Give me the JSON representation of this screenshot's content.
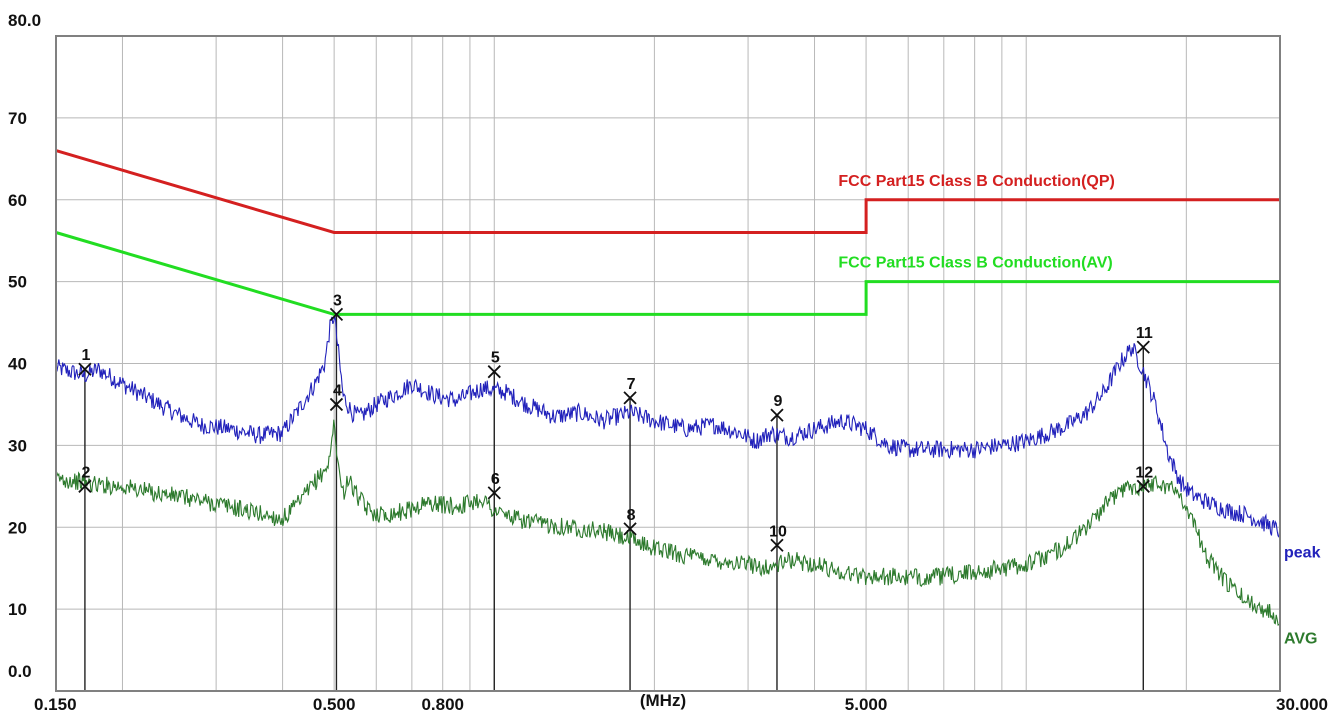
{
  "chart_data": {
    "type": "line",
    "x_scale": "log",
    "xlim": [
      0.15,
      30
    ],
    "ylim": [
      0,
      80
    ],
    "grid": true,
    "x_unit_label": "(MHz)",
    "y_ticks": [
      "0.0",
      "10",
      "20",
      "30",
      "40",
      "50",
      "60",
      "70",
      "80.0"
    ],
    "y_tick_values": [
      0,
      10,
      20,
      30,
      40,
      50,
      60,
      70,
      80
    ],
    "x_ticks": [
      "0.150",
      "0.500",
      "0.800",
      "5.000",
      "30.000"
    ],
    "x_tick_values": [
      0.15,
      0.5,
      0.8,
      5,
      30
    ],
    "limits": [
      {
        "name": "FCC Part15 Class B Conduction(QP)",
        "color": "#d42020",
        "points": [
          [
            0.15,
            66
          ],
          [
            0.5,
            56
          ],
          [
            5,
            56
          ],
          [
            5,
            60
          ],
          [
            30,
            60
          ]
        ]
      },
      {
        "name": "FCC Part15 Class B Conduction(AV)",
        "color": "#22dd22",
        "points": [
          [
            0.15,
            56
          ],
          [
            0.5,
            46
          ],
          [
            5,
            46
          ],
          [
            5,
            50
          ],
          [
            30,
            50
          ]
        ]
      }
    ],
    "series": [
      {
        "name": "peak",
        "color": "#2222bb",
        "x": [
          0.15,
          0.17,
          0.18,
          0.2,
          0.22,
          0.25,
          0.28,
          0.32,
          0.36,
          0.4,
          0.43,
          0.46,
          0.48,
          0.49,
          0.5,
          0.51,
          0.52,
          0.54,
          0.56,
          0.6,
          0.65,
          0.7,
          0.78,
          0.85,
          0.95,
          1.05,
          1.15,
          1.3,
          1.45,
          1.6,
          1.8,
          2.0,
          2.3,
          2.6,
          2.9,
          3.1,
          3.3,
          3.6,
          4.0,
          4.5,
          5.0,
          5.5,
          6.0,
          7.0,
          8.0,
          9.0,
          10.0,
          11.0,
          12.0,
          13.0,
          14.0,
          15.0,
          15.8,
          16.5,
          17.5,
          18.5,
          19.5,
          20.5,
          22.0,
          24.0,
          26.0,
          28.0,
          30.0
        ],
        "y": [
          39.5,
          38.5,
          39.3,
          37.5,
          36,
          34,
          32.5,
          32,
          31.2,
          31.5,
          34.5,
          37.5,
          40,
          44,
          46,
          41,
          36,
          34,
          33.5,
          35,
          36.2,
          37.5,
          36,
          35.5,
          37,
          36.5,
          35,
          33.5,
          34,
          33,
          34,
          33,
          32,
          32.5,
          31.5,
          30.5,
          31.5,
          31,
          32,
          33,
          32,
          30,
          29.5,
          29.5,
          29.5,
          30,
          30.5,
          31.5,
          32.5,
          34,
          36.5,
          40,
          42,
          39.5,
          35,
          29,
          25.5,
          24,
          23,
          22,
          21.5,
          20.5,
          19.5
        ]
      },
      {
        "name": "AVG",
        "color": "#2d7a2d",
        "x": [
          0.15,
          0.18,
          0.2,
          0.23,
          0.27,
          0.32,
          0.36,
          0.4,
          0.43,
          0.46,
          0.48,
          0.49,
          0.5,
          0.51,
          0.52,
          0.53,
          0.55,
          0.58,
          0.62,
          0.68,
          0.75,
          0.85,
          0.95,
          1.0,
          1.1,
          1.2,
          1.4,
          1.6,
          1.8,
          2.0,
          2.3,
          2.6,
          3.0,
          3.3,
          3.6,
          4.0,
          4.5,
          5.0,
          5.5,
          6.0,
          7.0,
          8.0,
          9.0,
          10.0,
          11.0,
          12.0,
          13.0,
          14.0,
          15.0,
          15.8,
          16.5,
          17.5,
          18.5,
          19.5,
          20.5,
          22.0,
          24.0,
          26.0,
          28.0,
          30.0
        ],
        "y": [
          26,
          25.2,
          25,
          24.2,
          23.5,
          22.5,
          21.7,
          21,
          23,
          25.5,
          27,
          28,
          33,
          27,
          24,
          26,
          24,
          22,
          21.5,
          22,
          23,
          22.5,
          23.5,
          22,
          21,
          20.5,
          20,
          19.5,
          18.5,
          17.5,
          16.5,
          16,
          15.5,
          15,
          16,
          15.5,
          14.5,
          14,
          14,
          13.8,
          14,
          14.5,
          15,
          15.5,
          16.5,
          18,
          20,
          22.5,
          24.5,
          25,
          25,
          25.5,
          25,
          24,
          21,
          16,
          13,
          11,
          10,
          9
        ]
      }
    ],
    "markers": [
      {
        "label": "1",
        "x": 0.17,
        "y": 39.3,
        "series": "peak"
      },
      {
        "label": "2",
        "x": 0.17,
        "y": 25.0,
        "series": "AVG"
      },
      {
        "label": "3",
        "x": 0.505,
        "y": 46.0,
        "series": "peak"
      },
      {
        "label": "4",
        "x": 0.505,
        "y": 35.0,
        "series": "AVG"
      },
      {
        "label": "5",
        "x": 1.0,
        "y": 39.0,
        "series": "peak"
      },
      {
        "label": "6",
        "x": 1.0,
        "y": 24.2,
        "series": "AVG"
      },
      {
        "label": "7",
        "x": 1.8,
        "y": 35.8,
        "series": "peak"
      },
      {
        "label": "8",
        "x": 1.8,
        "y": 19.8,
        "series": "AVG"
      },
      {
        "label": "9",
        "x": 3.4,
        "y": 33.7,
        "series": "peak"
      },
      {
        "label": "10",
        "x": 3.4,
        "y": 17.8,
        "series": "AVG"
      },
      {
        "label": "11",
        "x": 16.6,
        "y": 42.0,
        "series": "peak"
      },
      {
        "label": "12",
        "x": 16.6,
        "y": 25.0,
        "series": "AVG"
      }
    ]
  }
}
